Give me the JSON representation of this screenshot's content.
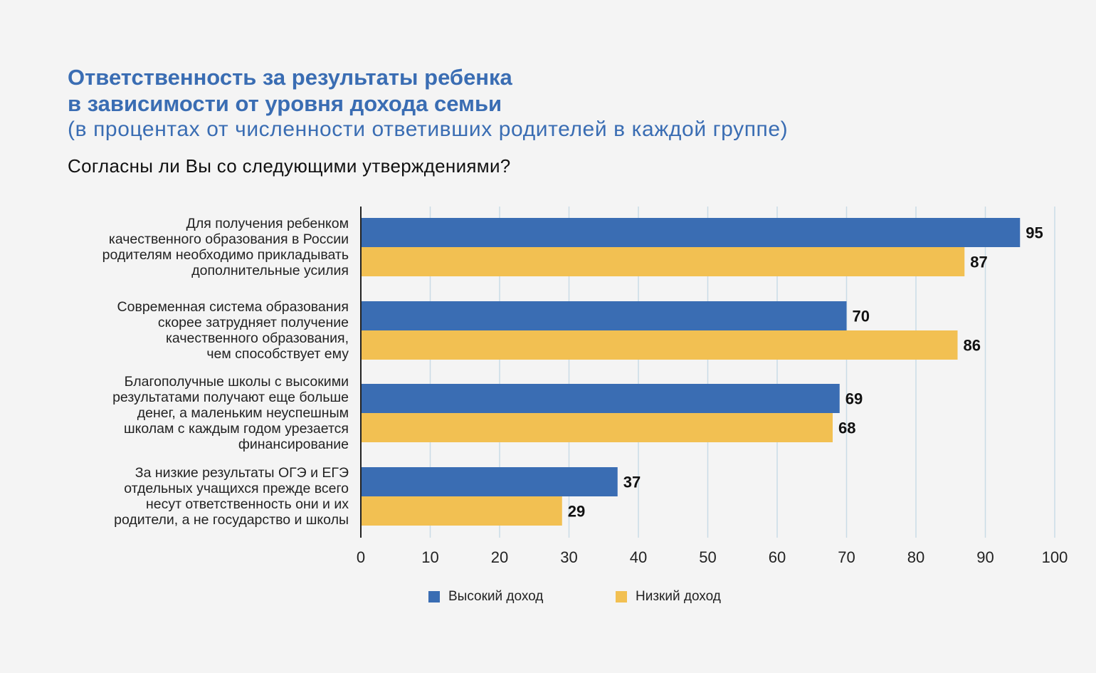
{
  "header": {
    "title_line1": "Ответственность за результаты ребенка",
    "title_line2": "в зависимости от уровня дохода семьи",
    "subtitle": "(в процентах от численности ответивших родителей в каждой группе)",
    "question": "Согласны ли Вы со следующими утверждениями?"
  },
  "categories_text": [
    [
      "Для получения ребенком",
      "качественного образования в России",
      "родителям необходимо прикладывать",
      "дополнительные усилия"
    ],
    [
      "Современная система образования",
      "скорее затрудняет получение",
      "качественного образования,",
      "чем способствует ему"
    ],
    [
      "Благополучные школы с высокими",
      "результатами получают еще больше",
      "денег, а маленьким неуспешным",
      "школам с каждым годом урезается",
      "финансирование"
    ],
    [
      "За низкие результаты ОГЭ и ЕГЭ",
      "отдельных учащихся прежде всего",
      "несут ответственность они и их",
      "родители, а не государство и школы"
    ]
  ],
  "chart_data": {
    "type": "bar",
    "orientation": "horizontal",
    "categories": [
      "Для получения ребенком качественного образования в России родителям необходимо прикладывать дополнительные усилия",
      "Современная система образования скорее затрудняет получение качественного образования, чем способствует ему",
      "Благополучные школы с высокими результатами получают еще больше денег, а маленьким неуспешным школам с каждым годом урезается финансирование",
      "За низкие результаты ОГЭ и ЕГЭ отдельных учащихся прежде всего несут ответственность они и их родители, а не государство и школы"
    ],
    "series": [
      {
        "name": "Высокий доход",
        "values": [
          95,
          70,
          69,
          37
        ],
        "color": "#3a6db3"
      },
      {
        "name": "Низкий доход",
        "values": [
          87,
          86,
          68,
          29
        ],
        "color": "#f2c052"
      }
    ],
    "xlim": [
      0,
      100
    ],
    "xticks": [
      "0",
      "10",
      "20",
      "30",
      "40",
      "50",
      "60",
      "70",
      "80",
      "90",
      "100"
    ],
    "grid": "vertical",
    "legend_position": "bottom"
  }
}
